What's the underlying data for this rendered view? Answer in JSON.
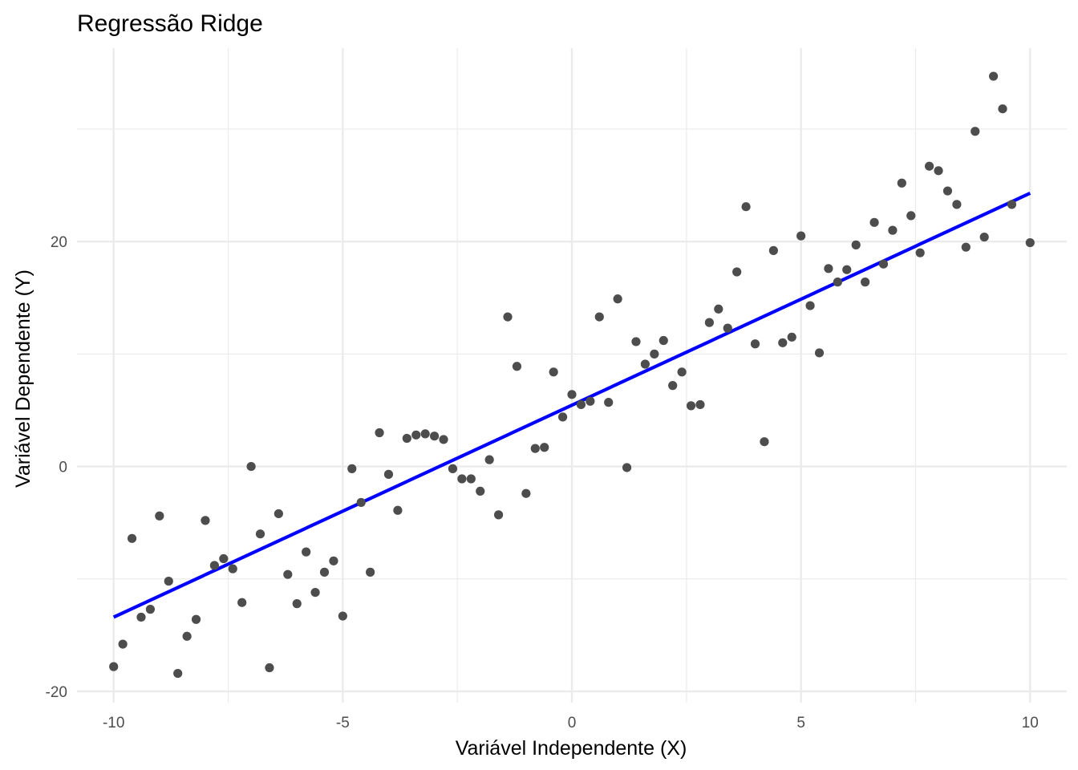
{
  "chart_data": {
    "type": "scatter",
    "title": "Regressão Ridge",
    "xlabel": "Variável Independente (X)",
    "ylabel": "Variável Dependente (Y)",
    "xlim": [
      -10.8,
      10.8
    ],
    "ylim": [
      -21.0,
      37.2
    ],
    "x_ticks": [
      -10,
      -5,
      0,
      5,
      10
    ],
    "x_tick_labels": [
      "-10",
      "-5",
      "0",
      "5",
      "10"
    ],
    "y_ticks": [
      -20,
      0,
      20
    ],
    "y_tick_labels": [
      "-20",
      "0",
      "20"
    ],
    "x_minor_grid": [
      -7.5,
      -2.5,
      2.5,
      7.5
    ],
    "y_minor_grid": [
      -10,
      10,
      30
    ],
    "grid": true,
    "legend": "none",
    "colors": {
      "points": "#4d4d4d",
      "fit_line": "#0000ff",
      "grid": "#ebebeb"
    },
    "series": [
      {
        "type": "scatter",
        "points": [
          [
            -10.0,
            -17.8
          ],
          [
            -9.8,
            -15.8
          ],
          [
            -9.6,
            -6.4
          ],
          [
            -9.4,
            -13.4
          ],
          [
            -9.2,
            -12.7
          ],
          [
            -9.0,
            -4.4
          ],
          [
            -8.8,
            -10.2
          ],
          [
            -8.6,
            -18.4
          ],
          [
            -8.4,
            -15.1
          ],
          [
            -8.2,
            -13.6
          ],
          [
            -8.0,
            -4.8
          ],
          [
            -7.8,
            -8.8
          ],
          [
            -7.6,
            -8.2
          ],
          [
            -7.4,
            -9.1
          ],
          [
            -7.2,
            -12.1
          ],
          [
            -7.0,
            0.0
          ],
          [
            -6.8,
            -6.0
          ],
          [
            -6.6,
            -17.9
          ],
          [
            -6.4,
            -4.2
          ],
          [
            -6.2,
            -9.6
          ],
          [
            -6.0,
            -12.2
          ],
          [
            -5.8,
            -7.6
          ],
          [
            -5.6,
            -11.2
          ],
          [
            -5.4,
            -9.4
          ],
          [
            -5.2,
            -8.4
          ],
          [
            -5.0,
            -13.3
          ],
          [
            -4.8,
            -0.2
          ],
          [
            -4.6,
            -3.2
          ],
          [
            -4.4,
            -9.4
          ],
          [
            -4.2,
            3.0
          ],
          [
            -4.0,
            -0.7
          ],
          [
            -3.8,
            -3.9
          ],
          [
            -3.6,
            2.5
          ],
          [
            -3.4,
            2.8
          ],
          [
            -3.2,
            2.9
          ],
          [
            -3.0,
            2.7
          ],
          [
            -2.8,
            2.4
          ],
          [
            -2.6,
            -0.2
          ],
          [
            -2.4,
            -1.1
          ],
          [
            -2.2,
            -1.1
          ],
          [
            -2.0,
            -2.2
          ],
          [
            -1.8,
            0.6
          ],
          [
            -1.6,
            -4.3
          ],
          [
            -1.4,
            13.3
          ],
          [
            -1.2,
            8.9
          ],
          [
            -1.0,
            -2.4
          ],
          [
            -0.8,
            1.6
          ],
          [
            -0.6,
            1.7
          ],
          [
            -0.4,
            8.4
          ],
          [
            -0.2,
            4.4
          ],
          [
            0.0,
            6.4
          ],
          [
            0.2,
            5.5
          ],
          [
            0.4,
            5.8
          ],
          [
            0.6,
            13.3
          ],
          [
            0.8,
            5.7
          ],
          [
            1.0,
            14.9
          ],
          [
            1.2,
            -0.1
          ],
          [
            1.4,
            11.1
          ],
          [
            1.6,
            9.1
          ],
          [
            1.8,
            10.0
          ],
          [
            2.0,
            11.2
          ],
          [
            2.2,
            7.2
          ],
          [
            2.4,
            8.4
          ],
          [
            2.6,
            5.4
          ],
          [
            2.8,
            5.5
          ],
          [
            3.0,
            12.8
          ],
          [
            3.2,
            14.0
          ],
          [
            3.4,
            12.3
          ],
          [
            3.6,
            17.3
          ],
          [
            3.8,
            23.1
          ],
          [
            4.0,
            10.9
          ],
          [
            4.2,
            2.2
          ],
          [
            4.4,
            19.2
          ],
          [
            4.6,
            11.0
          ],
          [
            4.8,
            11.5
          ],
          [
            5.0,
            20.5
          ],
          [
            5.2,
            14.3
          ],
          [
            5.4,
            10.1
          ],
          [
            5.6,
            17.6
          ],
          [
            5.8,
            16.4
          ],
          [
            6.0,
            17.5
          ],
          [
            6.2,
            19.7
          ],
          [
            6.4,
            16.4
          ],
          [
            6.6,
            21.7
          ],
          [
            6.8,
            18.0
          ],
          [
            7.0,
            21.0
          ],
          [
            7.2,
            25.2
          ],
          [
            7.4,
            22.3
          ],
          [
            7.6,
            19.0
          ],
          [
            7.8,
            26.7
          ],
          [
            8.0,
            26.3
          ],
          [
            8.2,
            24.5
          ],
          [
            8.4,
            23.3
          ],
          [
            8.6,
            19.5
          ],
          [
            8.8,
            29.8
          ],
          [
            9.0,
            20.4
          ],
          [
            9.2,
            34.7
          ],
          [
            9.4,
            31.8
          ],
          [
            9.6,
            23.3
          ],
          [
            10.0,
            19.9
          ]
        ]
      },
      {
        "type": "line",
        "points": [
          [
            -10.0,
            -13.4
          ],
          [
            10.0,
            24.3
          ]
        ]
      }
    ]
  }
}
